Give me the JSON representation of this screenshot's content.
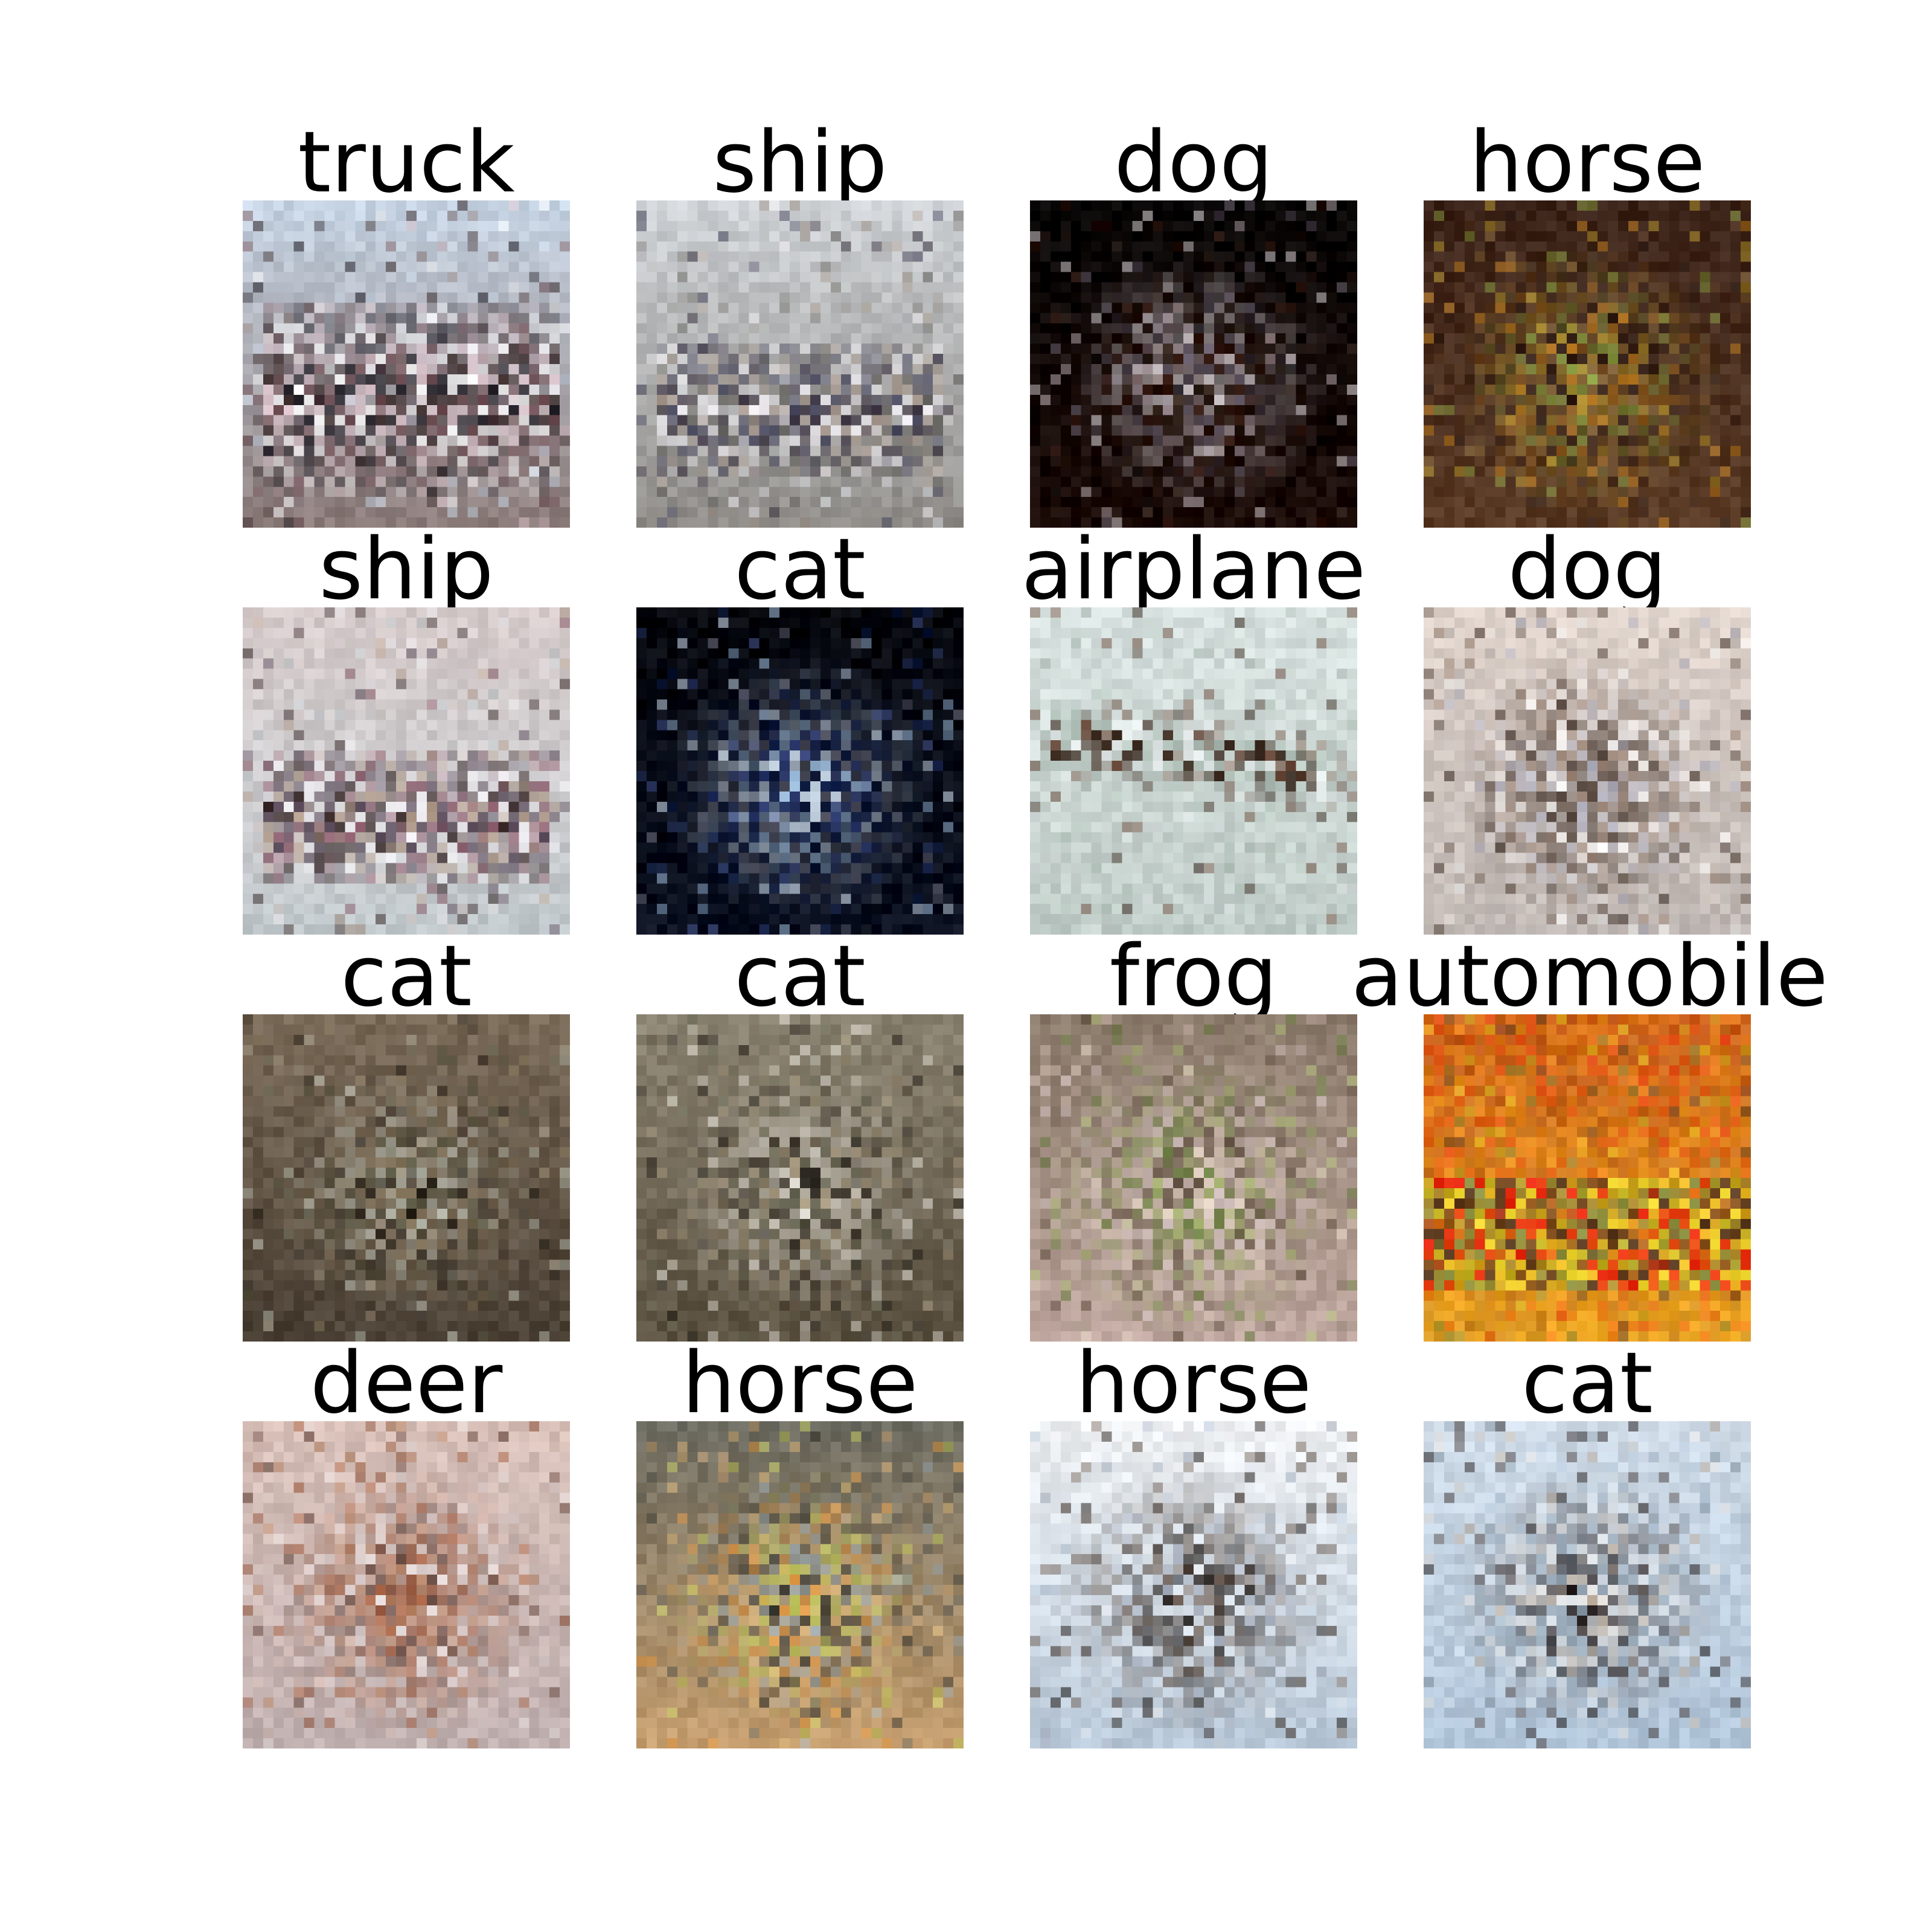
{
  "figure": {
    "background": "#ffffff",
    "tiles": [
      {
        "label": "truck",
        "palette": [
          "#c8d6e6",
          "#8a7a78",
          "#3a2a2a",
          "#ffffff",
          "#6b4a50",
          "#d8c0c8",
          "#1e1a22"
        ],
        "scene": "vehicle-light"
      },
      {
        "label": "ship",
        "palette": [
          "#d0d4d8",
          "#8f8c88",
          "#6a6864",
          "#e8e6ea",
          "#3a3240",
          "#a89a90",
          "#4a4a60"
        ],
        "scene": "boat-grey"
      },
      {
        "label": "dog",
        "palette": [
          "#050303",
          "#1a0a06",
          "#3a2a20",
          "#e8e0e4",
          "#6a6070",
          "#3a1a10",
          "#c0b0b8"
        ],
        "scene": "dark-figure"
      },
      {
        "label": "horse",
        "palette": [
          "#3a2218",
          "#5a3a24",
          "#8a6a3a",
          "#d08a24",
          "#c0a030",
          "#8aa040",
          "#2a1a14"
        ],
        "scene": "animal-warm"
      },
      {
        "label": "ship",
        "palette": [
          "#d8cccc",
          "#c0c8cc",
          "#b09a8a",
          "#f0eef2",
          "#8a5a6a",
          "#5a4a5a",
          "#3a2a2a"
        ],
        "scene": "boat-light"
      },
      {
        "label": "cat",
        "palette": [
          "#04060c",
          "#0a1020",
          "#1a2a5a",
          "#a0c0e0",
          "#d8e8f8",
          "#6a6a7a",
          "#3a4a8a"
        ],
        "scene": "dark-figure-blue"
      },
      {
        "label": "airplane",
        "palette": [
          "#d8e2e0",
          "#c0ccc8",
          "#b8c8c0",
          "#3a2a20",
          "#6a4a3a",
          "#e4eaea",
          "#a8b8b0"
        ],
        "scene": "plane"
      },
      {
        "label": "dog",
        "palette": [
          "#e0d4cc",
          "#c0b8b4",
          "#3a2a22",
          "#ffffff",
          "#8a7060",
          "#a8a8b8",
          "#5a4a40"
        ],
        "scene": "animal-light"
      },
      {
        "label": "cat",
        "palette": [
          "#7a6a58",
          "#4a4034",
          "#2a241c",
          "#a8a08c",
          "#c0c4b8",
          "#5a5a44",
          "#8a7a60"
        ],
        "scene": "animal-muted"
      },
      {
        "label": "cat",
        "palette": [
          "#8a8270",
          "#5a5040",
          "#2a2620",
          "#a89a80",
          "#c8c4b8",
          "#6a6a58",
          "#e0dcd4"
        ],
        "scene": "animal-muted"
      },
      {
        "label": "frog",
        "palette": [
          "#8a7a6a",
          "#c0a8a0",
          "#6a8040",
          "#a8b870",
          "#d8c8c8",
          "#5a4a3a",
          "#e0d0c0"
        ],
        "scene": "frog"
      },
      {
        "label": "automobile",
        "palette": [
          "#d85a14",
          "#f0a020",
          "#e82810",
          "#c0b020",
          "#8a9040",
          "#5a3a20",
          "#f0d830"
        ],
        "scene": "car-orange"
      },
      {
        "label": "deer",
        "palette": [
          "#d8c0b8",
          "#c0b0b0",
          "#b07a5a",
          "#8a4a30",
          "#5a3a30",
          "#e8e0e0",
          "#a86040"
        ],
        "scene": "animal-light"
      },
      {
        "label": "horse",
        "palette": [
          "#6a6a60",
          "#c8a070",
          "#e0b87a",
          "#3a3a34",
          "#a0b0b8",
          "#c8d060",
          "#e89a40"
        ],
        "scene": "animal-warm"
      },
      {
        "label": "horse",
        "palette": [
          "#f0f2f4",
          "#b8c8d8",
          "#d8e0e8",
          "#1a1410",
          "#3a2a20",
          "#a0a8b8",
          "#6a5a50"
        ],
        "scene": "animal-dark-light"
      },
      {
        "label": "cat",
        "palette": [
          "#d0dce8",
          "#b0c4d8",
          "#1a1414",
          "#e8e4e0",
          "#c0b0a0",
          "#8a9aa8",
          "#4a4040"
        ],
        "scene": "animal-blue-light"
      }
    ]
  }
}
